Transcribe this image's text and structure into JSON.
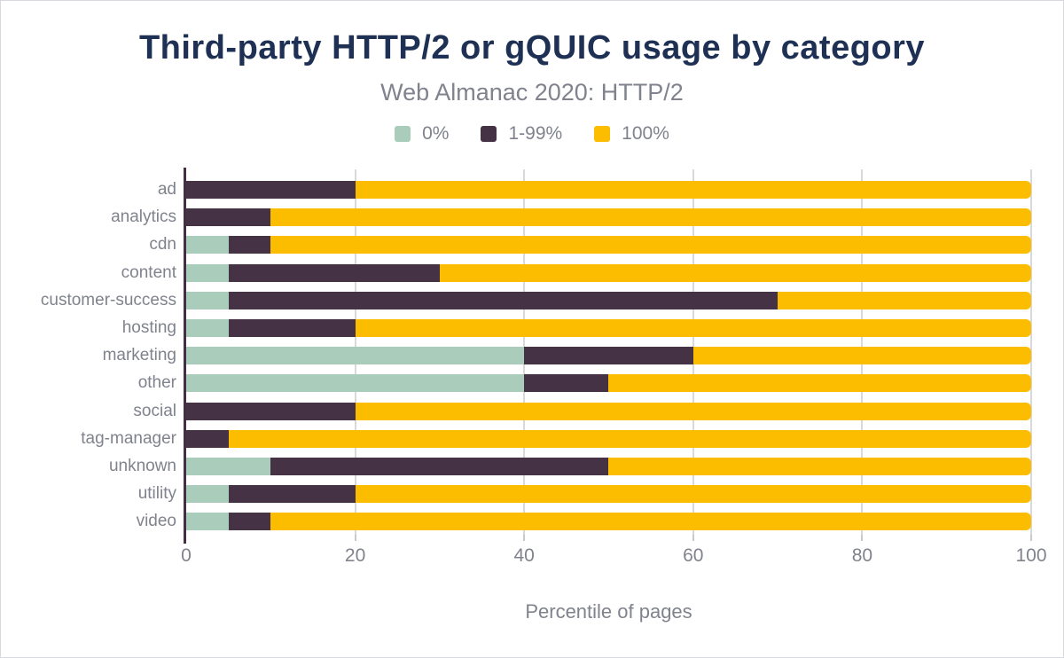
{
  "chart_data": {
    "type": "bar",
    "orientation": "horizontal-stacked",
    "title": "Third-party HTTP/2 or gQUIC usage by category",
    "subtitle": "Web Almanac 2020: HTTP/2",
    "xlabel": "Percentile of pages",
    "xlim": [
      0,
      100
    ],
    "x_ticks": [
      0,
      20,
      40,
      60,
      80,
      100
    ],
    "grid": true,
    "legend_position": "top-center",
    "categories": [
      "ad",
      "analytics",
      "cdn",
      "content",
      "customer-success",
      "hosting",
      "marketing",
      "other",
      "social",
      "tag-manager",
      "unknown",
      "utility",
      "video"
    ],
    "series": [
      {
        "name": "0%",
        "color": "#a9cdba",
        "values": [
          0,
          0,
          5,
          5,
          5,
          5,
          40,
          40,
          0,
          0,
          10,
          5,
          5
        ]
      },
      {
        "name": "1-99%",
        "color": "#463245",
        "values": [
          20,
          10,
          5,
          25,
          65,
          15,
          20,
          10,
          20,
          5,
          40,
          15,
          5
        ]
      },
      {
        "name": "100%",
        "color": "#fcbd00",
        "values": [
          80,
          90,
          90,
          70,
          30,
          80,
          40,
          50,
          80,
          95,
          50,
          80,
          90
        ]
      }
    ],
    "colors": {
      "title": "#1e3054",
      "muted_text": "#80838d",
      "axis": "#432e43",
      "grid": "#d9d9d9",
      "background": "#ffffff"
    }
  }
}
